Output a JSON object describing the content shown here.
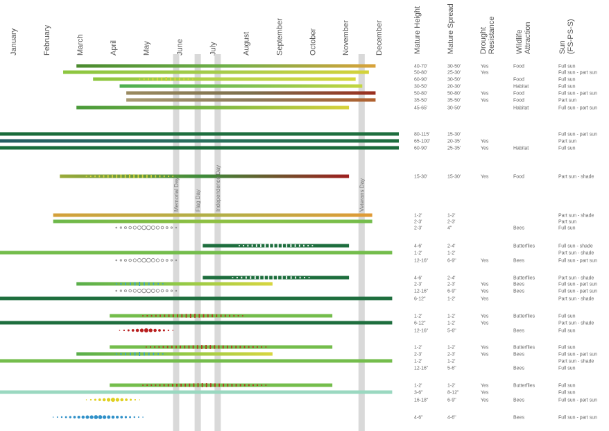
{
  "chart_data": {
    "type": "bar",
    "months": [
      "January",
      "February",
      "March",
      "April",
      "May",
      "June",
      "July",
      "August",
      "September",
      "October",
      "November",
      "December"
    ],
    "headers": [
      "Mature Height",
      "Mature Spread",
      "Drought Resistance",
      "Wildlife Attraction",
      "Sun (FS-PS-S)"
    ],
    "holidays": [
      {
        "label": "Memorial Day",
        "date": 5.3
      },
      {
        "label": "Flag Day",
        "date": 5.95
      },
      {
        "label": "Independence Day",
        "date": 6.55
      },
      {
        "label": "Veterans Day",
        "date": 10.88
      }
    ],
    "rows": [
      {
        "y": 95,
        "start": 2.3,
        "end": 11.3,
        "c": [
          "#4a8a2e",
          "#6fb049",
          "#d9a23a"
        ],
        "dots": null,
        "height": "40-70'",
        "spread": "30-50'",
        "drought": "Yes",
        "wildlife": "Food",
        "sun": "Full sun"
      },
      {
        "y": 104,
        "start": 1.9,
        "end": 11.1,
        "c": [
          "#8cc63f",
          "#a4cc4a",
          "#d4d23a"
        ],
        "dots": null,
        "height": "50-80'",
        "spread": "25-30'",
        "drought": "Yes",
        "wildlife": "",
        "sun": "Full sun - part sun"
      },
      {
        "y": 114,
        "start": 2.8,
        "end": 10.7,
        "c": [
          "#8cc63f",
          "#b6d34a",
          "#d6d73c"
        ],
        "dots": {
          "start": 4.2,
          "end": 5.8,
          "color": "#d8d640",
          "style": "bars"
        },
        "height": "60-90'",
        "spread": "30-50'",
        "drought": "",
        "wildlife": "Food",
        "sun": "Full sun"
      },
      {
        "y": 124,
        "start": 3.6,
        "end": 10.9,
        "c": [
          "#4caf50",
          "#7cbf52",
          "#c4d640"
        ],
        "dots": null,
        "height": "30-50'",
        "spread": "20-30'",
        "drought": "",
        "wildlife": "Habitat",
        "sun": "Full sun"
      },
      {
        "y": 134,
        "start": 3.8,
        "end": 11.3,
        "c": [
          "#9a8a60",
          "#7c6f4c",
          "#9a2e1e"
        ],
        "dots": null,
        "height": "50-80'",
        "spread": "50-80'",
        "drought": "Yes",
        "wildlife": "Food",
        "sun": "Full sun - part sun"
      },
      {
        "y": 144,
        "start": 3.8,
        "end": 11.3,
        "c": [
          "#a89a72",
          "#8b7a5a",
          "#b0602e"
        ],
        "dots": null,
        "height": "35-50'",
        "spread": "35-50'",
        "drought": "Yes",
        "wildlife": "Food",
        "sun": "Part sun"
      },
      {
        "y": 155,
        "start": 2.3,
        "end": 10.5,
        "c": [
          "#4a9a3a",
          "#7ab844",
          "#d8d23c"
        ],
        "dots": null,
        "height": "45-65'",
        "spread": "30-50'",
        "drought": "",
        "wildlife": "Habitat",
        "sun": "Full sun - part sun"
      },
      {
        "y": 193,
        "start": 0.0,
        "end": 12.0,
        "c": [
          "#1a6b3a",
          "#1e6e3e",
          "#1e6e3e"
        ],
        "dots": null,
        "height": "80-115'",
        "spread": "15-30'",
        "drought": "",
        "wildlife": "",
        "sun": "Full sun - part sun"
      },
      {
        "y": 203,
        "start": 0.0,
        "end": 12.0,
        "c": [
          "#245e63",
          "#2a6f5e",
          "#1e6e3e"
        ],
        "dots": null,
        "height": "65-100'",
        "spread": "20-35'",
        "drought": "Yes",
        "wildlife": "",
        "sun": "Part sun"
      },
      {
        "y": 213,
        "start": 0.0,
        "end": 12.0,
        "c": [
          "#186c3c",
          "#1a6a3a",
          "#1a6a3a"
        ],
        "dots": null,
        "height": "60-90'",
        "spread": "25-35'",
        "drought": "Yes",
        "wildlife": "Habitat",
        "sun": "Full sun"
      },
      {
        "y": 254,
        "start": 1.8,
        "end": 10.5,
        "c": [
          "#9aaa3a",
          "#3d8a3a",
          "#9e1e1e"
        ],
        "dots": {
          "start": 2.6,
          "end": 5.2,
          "color": "#d8d640",
          "style": "bars"
        },
        "height": "15-30'",
        "spread": "15-30'",
        "drought": "Yes",
        "wildlife": "Food",
        "sun": "Part sun - shade"
      },
      {
        "y": 310,
        "start": 1.6,
        "end": 11.2,
        "c": [
          "#d4a03a",
          "#b0b048",
          "#e09a36"
        ],
        "dots": null,
        "height": "1-2'",
        "spread": "1-2'",
        "drought": "",
        "wildlife": "",
        "sun": "Part sun - shade"
      },
      {
        "y": 319,
        "start": 1.6,
        "end": 11.2,
        "c": [
          "#6db84a",
          "#8fc043",
          "#74bd4c"
        ],
        "dots": null,
        "height": "2-3'",
        "spread": "2-3'",
        "drought": "",
        "wildlife": "",
        "sun": "Part sun"
      },
      {
        "y": 328,
        "start": null,
        "end": null,
        "c": null,
        "dots": {
          "start": 3.5,
          "end": 5.3,
          "color": "#8a8a8a",
          "style": "rings"
        },
        "height": "2-3'",
        "spread": "4\"",
        "drought": "",
        "wildlife": "Bees",
        "sun": "Full sun"
      },
      {
        "y": 354,
        "start": 6.1,
        "end": 10.5,
        "c": [
          "#1e6e3e",
          "#1e6e3e",
          "#1e6e3e"
        ],
        "dots": {
          "start": 7.2,
          "end": 9.4,
          "color": "#ffffff",
          "style": "bars"
        },
        "height": "4-6'",
        "spread": "2-4'",
        "drought": "",
        "wildlife": "Butterflies",
        "sun": "Full sun - shade"
      },
      {
        "y": 364,
        "start": 0.0,
        "end": 11.8,
        "c": [
          "#74bd4c",
          "#74bd4c",
          "#74bd4c"
        ],
        "dots": null,
        "height": "1-2'",
        "spread": "1-2'",
        "drought": "",
        "wildlife": "",
        "sun": "Part sun - shade"
      },
      {
        "y": 375,
        "start": null,
        "end": null,
        "c": null,
        "dots": {
          "start": 3.5,
          "end": 5.3,
          "color": "#8a8a8a",
          "style": "rings"
        },
        "height": "12-16\"",
        "spread": "6-9\"",
        "drought": "Yes",
        "wildlife": "Bees",
        "sun": "Full sun - part sun"
      },
      {
        "y": 400,
        "start": 6.1,
        "end": 10.5,
        "c": [
          "#1e6e3e",
          "#1e6e3e",
          "#1e6e3e"
        ],
        "dots": {
          "start": 7.0,
          "end": 9.3,
          "color": "#ffffff",
          "style": "bars"
        },
        "height": "4-6'",
        "spread": "2-4'",
        "drought": "",
        "wildlife": "Butterflies",
        "sun": "Part sun - shade"
      },
      {
        "y": 409,
        "start": 2.3,
        "end": 8.2,
        "c": [
          "#5aae4a",
          "#8ec846",
          "#d8d640"
        ],
        "dots": {
          "start": 3.5,
          "end": 4.9,
          "color": "#3aa0d0",
          "style": "bars"
        },
        "height": "2-3'",
        "spread": "2-3'",
        "drought": "Yes",
        "wildlife": "Bees",
        "sun": "Full sun - part sun"
      },
      {
        "y": 419,
        "start": null,
        "end": null,
        "c": null,
        "dots": {
          "start": 3.5,
          "end": 5.3,
          "color": "#8a8a8a",
          "style": "rings"
        },
        "height": "12-16\"",
        "spread": "6-9\"",
        "drought": "Yes",
        "wildlife": "Bees",
        "sun": "Full sun - part sun"
      },
      {
        "y": 430,
        "start": 0.0,
        "end": 11.8,
        "c": [
          "#1e6e3e",
          "#1e6e3e",
          "#1e6e3e"
        ],
        "dots": null,
        "height": "6-12\"",
        "spread": "1-2'",
        "drought": "Yes",
        "wildlife": "",
        "sun": "Part sun - shade"
      },
      {
        "y": 455,
        "start": 3.3,
        "end": 10.0,
        "c": [
          "#74bd4c",
          "#74bd4c",
          "#74bd4c"
        ],
        "dots": {
          "start": 4.3,
          "end": 7.3,
          "color": "#b23a22",
          "style": "bars"
        },
        "height": "1-2'",
        "spread": "1-2'",
        "drought": "Yes",
        "wildlife": "Butterflies",
        "sun": "Full sun"
      },
      {
        "y": 465,
        "start": 0.0,
        "end": 11.8,
        "c": [
          "#1e6e3e",
          "#1e6e3e",
          "#1e6e3e"
        ],
        "dots": null,
        "height": "6-12\"",
        "spread": "1-2'",
        "drought": "Yes",
        "wildlife": "",
        "sun": "Part sun - shade"
      },
      {
        "y": 476,
        "start": null,
        "end": null,
        "c": null,
        "dots": {
          "start": 3.6,
          "end": 5.2,
          "color": "#b81e1e",
          "style": "solid"
        },
        "height": "12-16\"",
        "spread": "5-6\"",
        "drought": "",
        "wildlife": "Bees",
        "sun": "Full sun"
      },
      {
        "y": 500,
        "start": 3.3,
        "end": 10.0,
        "c": [
          "#74bd4c",
          "#74bd4c",
          "#74bd4c"
        ],
        "dots": {
          "start": 4.4,
          "end": 8.0,
          "color": "#b23a22",
          "style": "bars"
        },
        "height": "1-2'",
        "spread": "1-2'",
        "drought": "Yes",
        "wildlife": "Butterflies",
        "sun": "Full sun"
      },
      {
        "y": 510,
        "start": 2.3,
        "end": 8.2,
        "c": [
          "#5aae4a",
          "#8ec846",
          "#d8d640"
        ],
        "dots": {
          "start": 3.5,
          "end": 4.9,
          "color": "#3aa0d0",
          "style": "bars"
        },
        "height": "2-3'",
        "spread": "2-3'",
        "drought": "Yes",
        "wildlife": "Bees",
        "sun": "Full sun - part sun"
      },
      {
        "y": 520,
        "start": 0.0,
        "end": 11.8,
        "c": [
          "#74bd4c",
          "#74bd4c",
          "#74bd4c"
        ],
        "dots": null,
        "height": "1-2'",
        "spread": "1-2'",
        "drought": "",
        "wildlife": "",
        "sun": "Part sun - shade"
      },
      {
        "y": 530,
        "start": null,
        "end": null,
        "c": null,
        "dots": null,
        "height": "12-16\"",
        "spread": "5-6\"",
        "drought": "",
        "wildlife": "Bees",
        "sun": "Full sun"
      },
      {
        "y": 555,
        "start": 3.3,
        "end": 10.0,
        "c": [
          "#74bd4c",
          "#74bd4c",
          "#74bd4c"
        ],
        "dots": {
          "start": 4.3,
          "end": 8.0,
          "color": "#b23a22",
          "style": "bars"
        },
        "height": "1-2'",
        "spread": "1-2'",
        "drought": "Yes",
        "wildlife": "Butterflies",
        "sun": "Full sun"
      },
      {
        "y": 565,
        "start": 0.0,
        "end": 11.8,
        "c": [
          "#9ad8c0",
          "#9ad8c0",
          "#9ad8c0"
        ],
        "dots": null,
        "height": "3-6\"",
        "spread": "8-12\"",
        "drought": "Yes",
        "wildlife": "",
        "sun": "Full sun"
      },
      {
        "y": 576,
        "start": null,
        "end": null,
        "c": null,
        "dots": {
          "start": 2.6,
          "end": 4.2,
          "color": "#e0d020",
          "style": "solid"
        },
        "height": "16-18\"",
        "spread": "6-9\"",
        "drought": "Yes",
        "wildlife": "Bees",
        "sun": "Full sun - part sun"
      },
      {
        "y": 601,
        "start": null,
        "end": null,
        "c": null,
        "dots": {
          "start": 1.6,
          "end": 4.3,
          "color": "#2f90c8",
          "style": "solid"
        },
        "height": "4-6\"",
        "spread": "4-6\"",
        "drought": "",
        "wildlife": "Bees",
        "sun": "Full sun - part sun"
      }
    ]
  }
}
